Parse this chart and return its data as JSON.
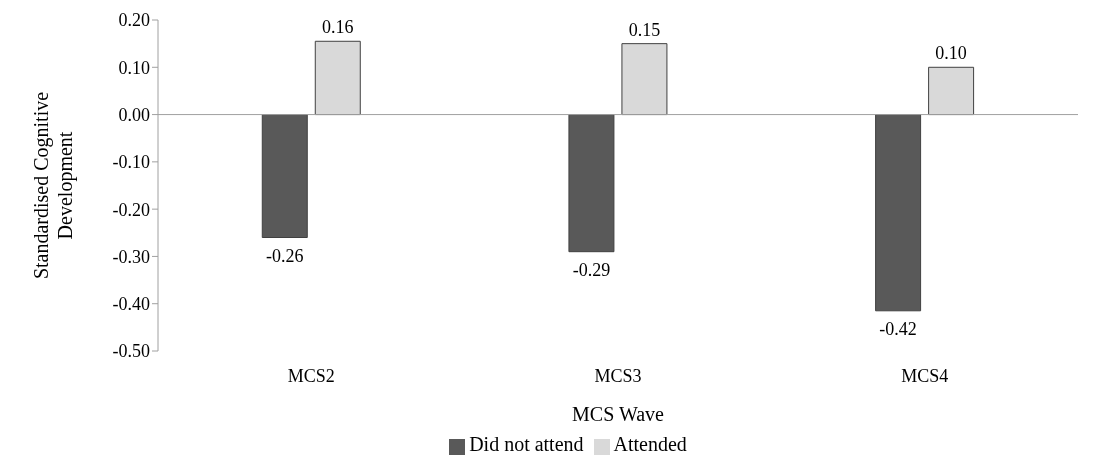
{
  "chart_data": {
    "type": "bar",
    "categories": [
      "MCS2",
      "MCS3",
      "MCS4"
    ],
    "series": [
      {
        "name": "Did not attend",
        "color": "#595959",
        "values": [
          -0.26,
          -0.29,
          -0.415
        ],
        "value_labels": [
          "-0.26",
          "-0.29",
          "-0.42"
        ]
      },
      {
        "name": "Attended",
        "color": "#d9d9d9",
        "values": [
          0.155,
          0.15,
          0.1
        ],
        "value_labels": [
          "0.16",
          "0.15",
          "0.10"
        ]
      }
    ],
    "xlabel": "MCS Wave",
    "ylabel": "Standardised Cognitive Development",
    "ylim": [
      -0.5,
      0.2
    ],
    "yticks": [
      {
        "value": -0.5,
        "label": "-0.50"
      },
      {
        "value": -0.4,
        "label": "-0.40"
      },
      {
        "value": -0.3,
        "label": "-0.30"
      },
      {
        "value": -0.2,
        "label": "-0.20"
      },
      {
        "value": -0.1,
        "label": "-0.10"
      },
      {
        "value": 0,
        "label": "0.00"
      },
      {
        "value": 0.1,
        "label": "0.10"
      },
      {
        "value": 0.2,
        "label": "0.20"
      }
    ],
    "legend": "bottom"
  }
}
